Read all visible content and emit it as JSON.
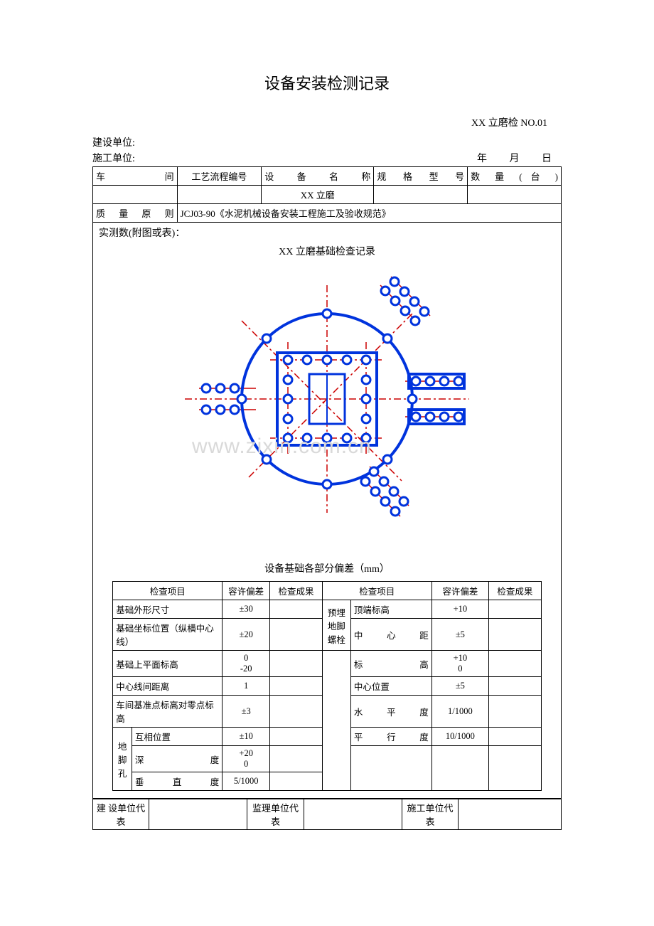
{
  "title": "设备安装检测记录",
  "doc_no": "XX 立磨检 NO.01",
  "header": {
    "build_unit_label": "建设单位:",
    "construct_unit_label": "施工单位:",
    "year": "年",
    "month": "月",
    "day": "日"
  },
  "top_table": {
    "workshop_label": "车　间",
    "process_no_label": "工艺流程编号",
    "equip_name_label": "设 备 名 称",
    "spec_label": "规 格 型 号",
    "qty_label": "数 量 ( 台 )",
    "equip_name_value": "XX 立磨",
    "quality_label": "质 量 原 则",
    "quality_value": "JCJ03-90《水泥机械设备安装工程施工及验收规范》"
  },
  "diagram": {
    "measured_label": "实测数(附图或表)：",
    "diagram_title": "XX 立磨基础检查记录",
    "subtitle": "设备基础各部分偏差（mm）",
    "watermark": "www.zixin.com.cn",
    "colors": {
      "blue": "#0033dd",
      "red": "#cc0000",
      "node_fill": "#ffffff"
    },
    "circle_r": 120,
    "stroke_w": 4
  },
  "check_table": {
    "headers": {
      "item": "检查项目",
      "tol": "容许偏差",
      "result": "检查成果"
    },
    "left_rows": [
      {
        "item": "基础外形尺寸",
        "tol": "±30"
      },
      {
        "item": "基础坐标位置（纵横中心线）",
        "tol": "±20"
      },
      {
        "item": "基础上平面标高",
        "tol": "0\n-20"
      },
      {
        "item": "中心线间距离",
        "tol": "1"
      },
      {
        "item": "车间基准点标高对零点标高",
        "tol": "±3"
      }
    ],
    "bolt_hole_label": "地脚孔",
    "bolt_hole_rows": [
      {
        "item": "互相位置",
        "tol": "±10"
      },
      {
        "item": "深　度",
        "tol": "+20\n0"
      },
      {
        "item": "垂 直 度",
        "tol": "5/1000"
      }
    ],
    "embed_label": "预埋地脚螺栓",
    "right_rows": [
      {
        "item": "顶端标高",
        "tol": "+10"
      },
      {
        "item": "中 心 距",
        "tol": "±5"
      },
      {
        "item": "标　高",
        "tol": "+10\n0"
      },
      {
        "item": "中心位置",
        "tol": "±5"
      },
      {
        "item": "水 平 度",
        "tol": "1/1000"
      },
      {
        "item": "平 行 度",
        "tol": "10/1000"
      }
    ]
  },
  "sig": {
    "build": "建 设单位代　表",
    "supv": "监理单位代　表",
    "const": "施工单位代　表"
  }
}
